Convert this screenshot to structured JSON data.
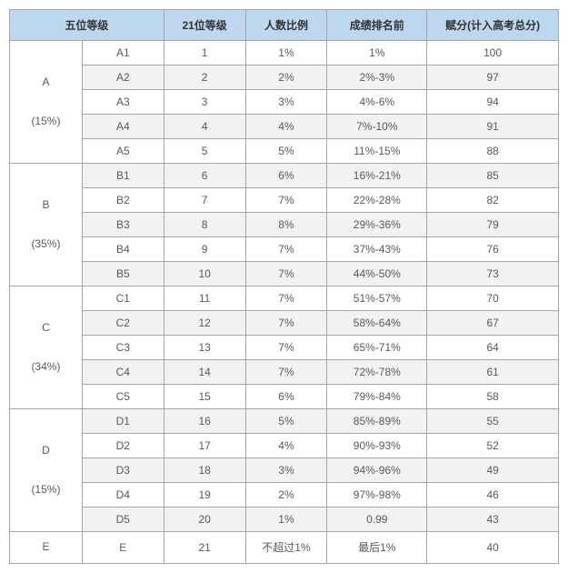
{
  "columns": [
    "五位等级",
    "21位等级",
    "人数比例",
    "成绩排名前",
    "赋分(计入高考总分)"
  ],
  "colWidths": [
    "col-sub",
    "col-21",
    "col-ratio",
    "col-rank",
    "col-score"
  ],
  "groups": [
    {
      "label": "A",
      "pct": "(15%)",
      "rows": [
        {
          "sub": "A1",
          "v21": "1",
          "ratio": "1%",
          "rank": "1%",
          "score": "100",
          "alt": false
        },
        {
          "sub": "A2",
          "v21": "2",
          "ratio": "2%",
          "rank": "2%-3%",
          "score": "97",
          "alt": true
        },
        {
          "sub": "A3",
          "v21": "3",
          "ratio": "3%",
          "rank": "4%-6%",
          "score": "94",
          "alt": false
        },
        {
          "sub": "A4",
          "v21": "4",
          "ratio": "4%",
          "rank": "7%-10%",
          "score": "91",
          "alt": true
        },
        {
          "sub": "A5",
          "v21": "5",
          "ratio": "5%",
          "rank": "11%-15%",
          "score": "88",
          "alt": false
        }
      ]
    },
    {
      "label": "B",
      "pct": "(35%)",
      "rows": [
        {
          "sub": "B1",
          "v21": "6",
          "ratio": "6%",
          "rank": "16%-21%",
          "score": "85",
          "alt": true
        },
        {
          "sub": "B2",
          "v21": "7",
          "ratio": "7%",
          "rank": "22%-28%",
          "score": "82",
          "alt": false
        },
        {
          "sub": "B3",
          "v21": "8",
          "ratio": "8%",
          "rank": "29%-36%",
          "score": "79",
          "alt": true
        },
        {
          "sub": "B4",
          "v21": "9",
          "ratio": "7%",
          "rank": "37%-43%",
          "score": "76",
          "alt": false
        },
        {
          "sub": "B5",
          "v21": "10",
          "ratio": "7%",
          "rank": "44%-50%",
          "score": "73",
          "alt": true
        }
      ]
    },
    {
      "label": "C",
      "pct": "(34%)",
      "rows": [
        {
          "sub": "C1",
          "v21": "11",
          "ratio": "7%",
          "rank": "51%-57%",
          "score": "70",
          "alt": false
        },
        {
          "sub": "C2",
          "v21": "12",
          "ratio": "7%",
          "rank": "58%-64%",
          "score": "67",
          "alt": true
        },
        {
          "sub": "C3",
          "v21": "13",
          "ratio": "7%",
          "rank": "65%-71%",
          "score": "64",
          "alt": false
        },
        {
          "sub": "C4",
          "v21": "14",
          "ratio": "7%",
          "rank": "72%-78%",
          "score": "61",
          "alt": true
        },
        {
          "sub": "C5",
          "v21": "15",
          "ratio": "6%",
          "rank": "79%-84%",
          "score": "58",
          "alt": false
        }
      ]
    },
    {
      "label": "D",
      "pct": "(15%)",
      "rows": [
        {
          "sub": "D1",
          "v21": "16",
          "ratio": "5%",
          "rank": "85%-89%",
          "score": "55",
          "alt": true
        },
        {
          "sub": "D2",
          "v21": "17",
          "ratio": "4%",
          "rank": "90%-93%",
          "score": "52",
          "alt": false
        },
        {
          "sub": "D3",
          "v21": "18",
          "ratio": "3%",
          "rank": "94%-96%",
          "score": "49",
          "alt": true
        },
        {
          "sub": "D4",
          "v21": "19",
          "ratio": "2%",
          "rank": "97%-98%",
          "score": "46",
          "alt": false
        },
        {
          "sub": "D5",
          "v21": "20",
          "ratio": "1%",
          "rank": "0.99",
          "score": "43",
          "alt": true
        }
      ]
    },
    {
      "label": "E",
      "pct": "",
      "rows": [
        {
          "sub": "E",
          "v21": "21",
          "ratio": "不超过1%",
          "rank": "最后1%",
          "score": "40",
          "alt": false
        }
      ]
    }
  ],
  "style": {
    "header_bg": "#bdd7ee",
    "border_color": "#a6a6a6",
    "alt_bg": "#f2f2f2",
    "text_color": "#595959",
    "font_size_pt": 9
  }
}
